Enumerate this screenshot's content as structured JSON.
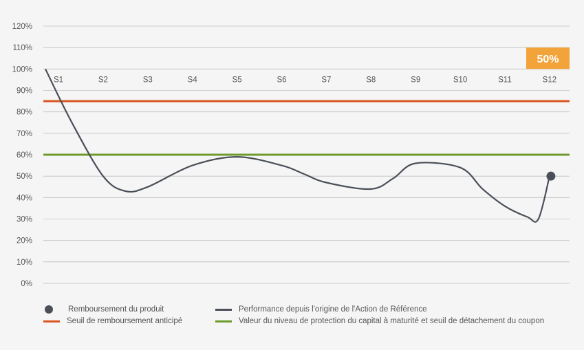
{
  "chart_data": {
    "type": "line",
    "y_ticks": [
      "0%",
      "10%",
      "20%",
      "30%",
      "40%",
      "50%",
      "60%",
      "70%",
      "80%",
      "90%",
      "100%",
      "110%",
      "120%"
    ],
    "ylim": [
      0,
      120
    ],
    "grid": true,
    "categories": [
      "S1",
      "S2",
      "S3",
      "S4",
      "S5",
      "S6",
      "S7",
      "S8",
      "S9",
      "S10",
      "S11",
      "S12"
    ],
    "series": [
      {
        "name": "Performance depuis l'origine de l'Action de Référence",
        "color": "#4a4f58",
        "x": [
          0,
          0.3,
          1.0,
          1.5,
          2.0,
          3.0,
          4.0,
          5.0,
          5.5,
          6.0,
          7.0,
          7.5,
          8.0,
          9.0,
          9.5,
          10.0,
          10.5,
          10.75,
          11.0
        ],
        "y": [
          100,
          75,
          50,
          43,
          45,
          55,
          59,
          55,
          51,
          47,
          44,
          49,
          56,
          54,
          44,
          36,
          31,
          30,
          50
        ]
      }
    ],
    "thresholds": [
      {
        "name": "Seuil de remboursement anticipé",
        "value": 85,
        "color": "#d9541e"
      },
      {
        "name": "Valeur du niveau de protection du capital à maturité et seuil de détachement du coupon",
        "value": 60,
        "color": "#6e9a2c"
      }
    ],
    "end_point": {
      "name": "Remboursement du produit",
      "category": "S12",
      "value": 50,
      "color": "#4a4f58"
    },
    "highlight_box": {
      "label": "50%",
      "color": "#f2a33a",
      "text_color": "#ffffff"
    },
    "legend_position": "bottom"
  },
  "legend": {
    "dot_label": "Remboursement du produit",
    "perf_label": "Performance depuis l'origine de l'Action de Référence",
    "early_label": "Seuil de remboursement anticipé",
    "protection_label": "Valeur du niveau de protection du capital à maturité et seuil de détachement du coupon"
  },
  "colors": {
    "background": "#f5f5f5",
    "grid": "#bfbfbf",
    "axis_text": "#555555",
    "perf_line": "#4a4f58",
    "early_line": "#d9541e",
    "protection_line": "#6e9a2c"
  }
}
